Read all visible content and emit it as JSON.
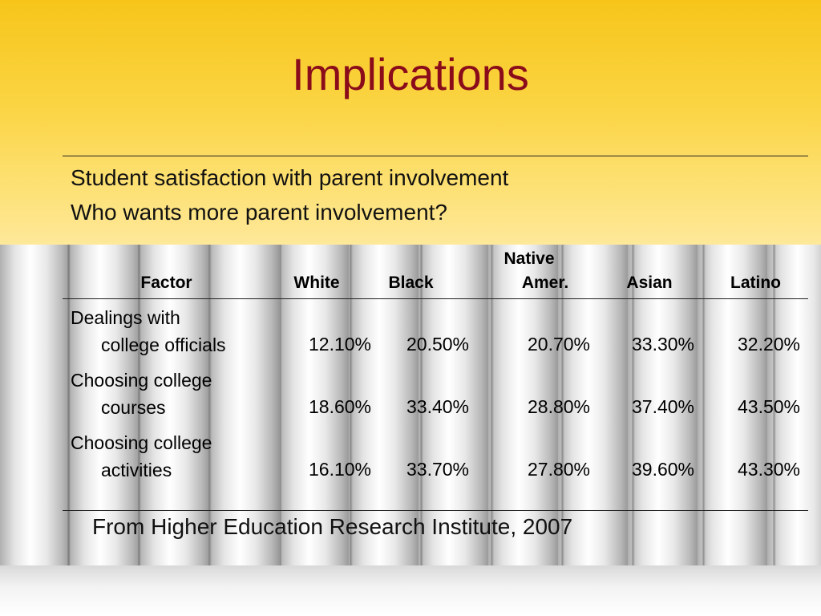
{
  "slide": {
    "title": "Implications",
    "subtitle_lines": [
      "Student satisfaction with parent involvement",
      "Who wants more parent involvement?"
    ],
    "source": "From Higher Education Research Institute, 2007",
    "colors": {
      "title": "#8a0c1a",
      "band_top": "#f7c51a",
      "band_bottom": "#fee89a"
    }
  },
  "table": {
    "headers": {
      "factor": "Factor",
      "white": "White",
      "black": "Black",
      "native_line1": "Native",
      "native_line2": "Amer.",
      "asian": "Asian",
      "latino": "Latino"
    },
    "rows": [
      {
        "factor_line1": "Dealings with",
        "factor_line2": "college officials",
        "white": "12.10%",
        "black": "20.50%",
        "native": "20.70%",
        "asian": "33.30%",
        "latino": "32.20%"
      },
      {
        "factor_line1": "Choosing college",
        "factor_line2": "courses",
        "white": "18.60%",
        "black": "33.40%",
        "native": "28.80%",
        "asian": "37.40%",
        "latino": "43.50%"
      },
      {
        "factor_line1": "Choosing college",
        "factor_line2": "activities",
        "white": "16.10%",
        "black": "33.70%",
        "native": "27.80%",
        "asian": "39.60%",
        "latino": "43.30%"
      }
    ]
  }
}
